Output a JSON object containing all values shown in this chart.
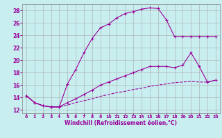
{
  "title": "",
  "xlabel": "Windchill (Refroidissement éolien,°C)",
  "ylabel": "",
  "background_color": "#c8eef0",
  "line_color": "#990099",
  "grid_color": "#aaaaaa",
  "xlim": [
    -0.5,
    23.5
  ],
  "ylim": [
    11.5,
    29.0
  ],
  "xticks": [
    0,
    1,
    2,
    3,
    4,
    5,
    6,
    7,
    8,
    9,
    10,
    11,
    12,
    13,
    14,
    15,
    16,
    17,
    18,
    19,
    20,
    21,
    22,
    23
  ],
  "yticks": [
    12,
    14,
    16,
    18,
    20,
    22,
    24,
    26,
    28
  ],
  "series1_x": [
    0,
    1,
    2,
    3,
    4,
    5,
    6,
    7,
    8,
    9,
    10,
    11,
    12,
    13,
    14,
    15,
    16,
    17,
    18,
    19,
    20,
    21,
    22,
    23
  ],
  "series1_y": [
    14.3,
    13.2,
    12.7,
    12.5,
    12.5,
    16.2,
    18.5,
    21.2,
    23.5,
    25.2,
    25.8,
    26.8,
    27.5,
    27.8,
    28.2,
    28.4,
    28.3,
    26.5,
    23.8,
    23.8,
    23.8,
    23.8,
    23.8,
    23.8
  ],
  "series2_x": [
    0,
    1,
    2,
    3,
    4,
    5,
    6,
    7,
    8,
    9,
    10,
    11,
    12,
    13,
    14,
    15,
    16,
    17,
    18,
    19,
    20,
    21,
    22,
    23
  ],
  "series2_y": [
    14.3,
    13.2,
    12.7,
    12.5,
    12.5,
    13.2,
    13.8,
    14.5,
    15.2,
    16.0,
    16.5,
    17.0,
    17.5,
    18.0,
    18.5,
    19.0,
    19.0,
    19.0,
    18.8,
    19.2,
    21.2,
    19.0,
    16.5,
    16.8
  ],
  "series3_x": [
    0,
    1,
    2,
    3,
    4,
    5,
    6,
    7,
    8,
    9,
    10,
    11,
    12,
    13,
    14,
    15,
    16,
    17,
    18,
    19,
    20,
    21,
    22,
    23
  ],
  "series3_y": [
    14.3,
    13.2,
    12.7,
    12.5,
    12.5,
    12.8,
    13.2,
    13.5,
    13.8,
    14.2,
    14.5,
    14.8,
    15.0,
    15.3,
    15.5,
    15.8,
    16.0,
    16.2,
    16.4,
    16.5,
    16.6,
    16.5,
    16.5,
    16.8
  ]
}
